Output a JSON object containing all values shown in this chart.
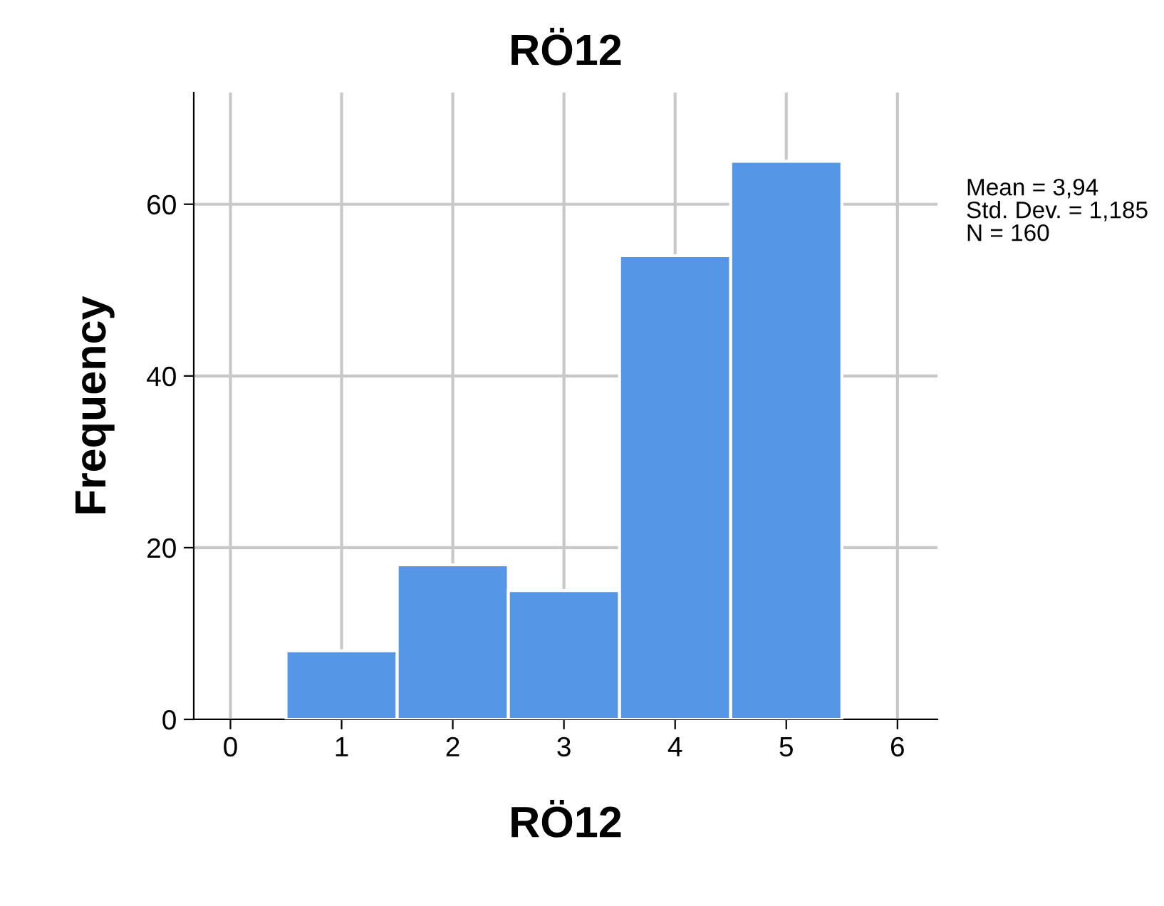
{
  "chart_data": {
    "type": "histogram",
    "title": "RÖ12",
    "xlabel": "RÖ12",
    "ylabel": "Frequency",
    "bins": [
      0.5,
      1.5,
      2.5,
      3.5,
      4.5,
      5.5
    ],
    "values": [
      8,
      18,
      15,
      54,
      65
    ],
    "color": "#5596e6",
    "xlim": [
      -0.33,
      6.36
    ],
    "xticks": [
      0,
      1,
      2,
      3,
      4,
      5,
      6
    ],
    "ylim": [
      0,
      73
    ],
    "yticks": [
      0,
      20,
      40,
      60
    ],
    "grid": true,
    "annotations": [
      "Mean = 3,94",
      "Std. Dev. = 1,185",
      "N = 160"
    ]
  }
}
